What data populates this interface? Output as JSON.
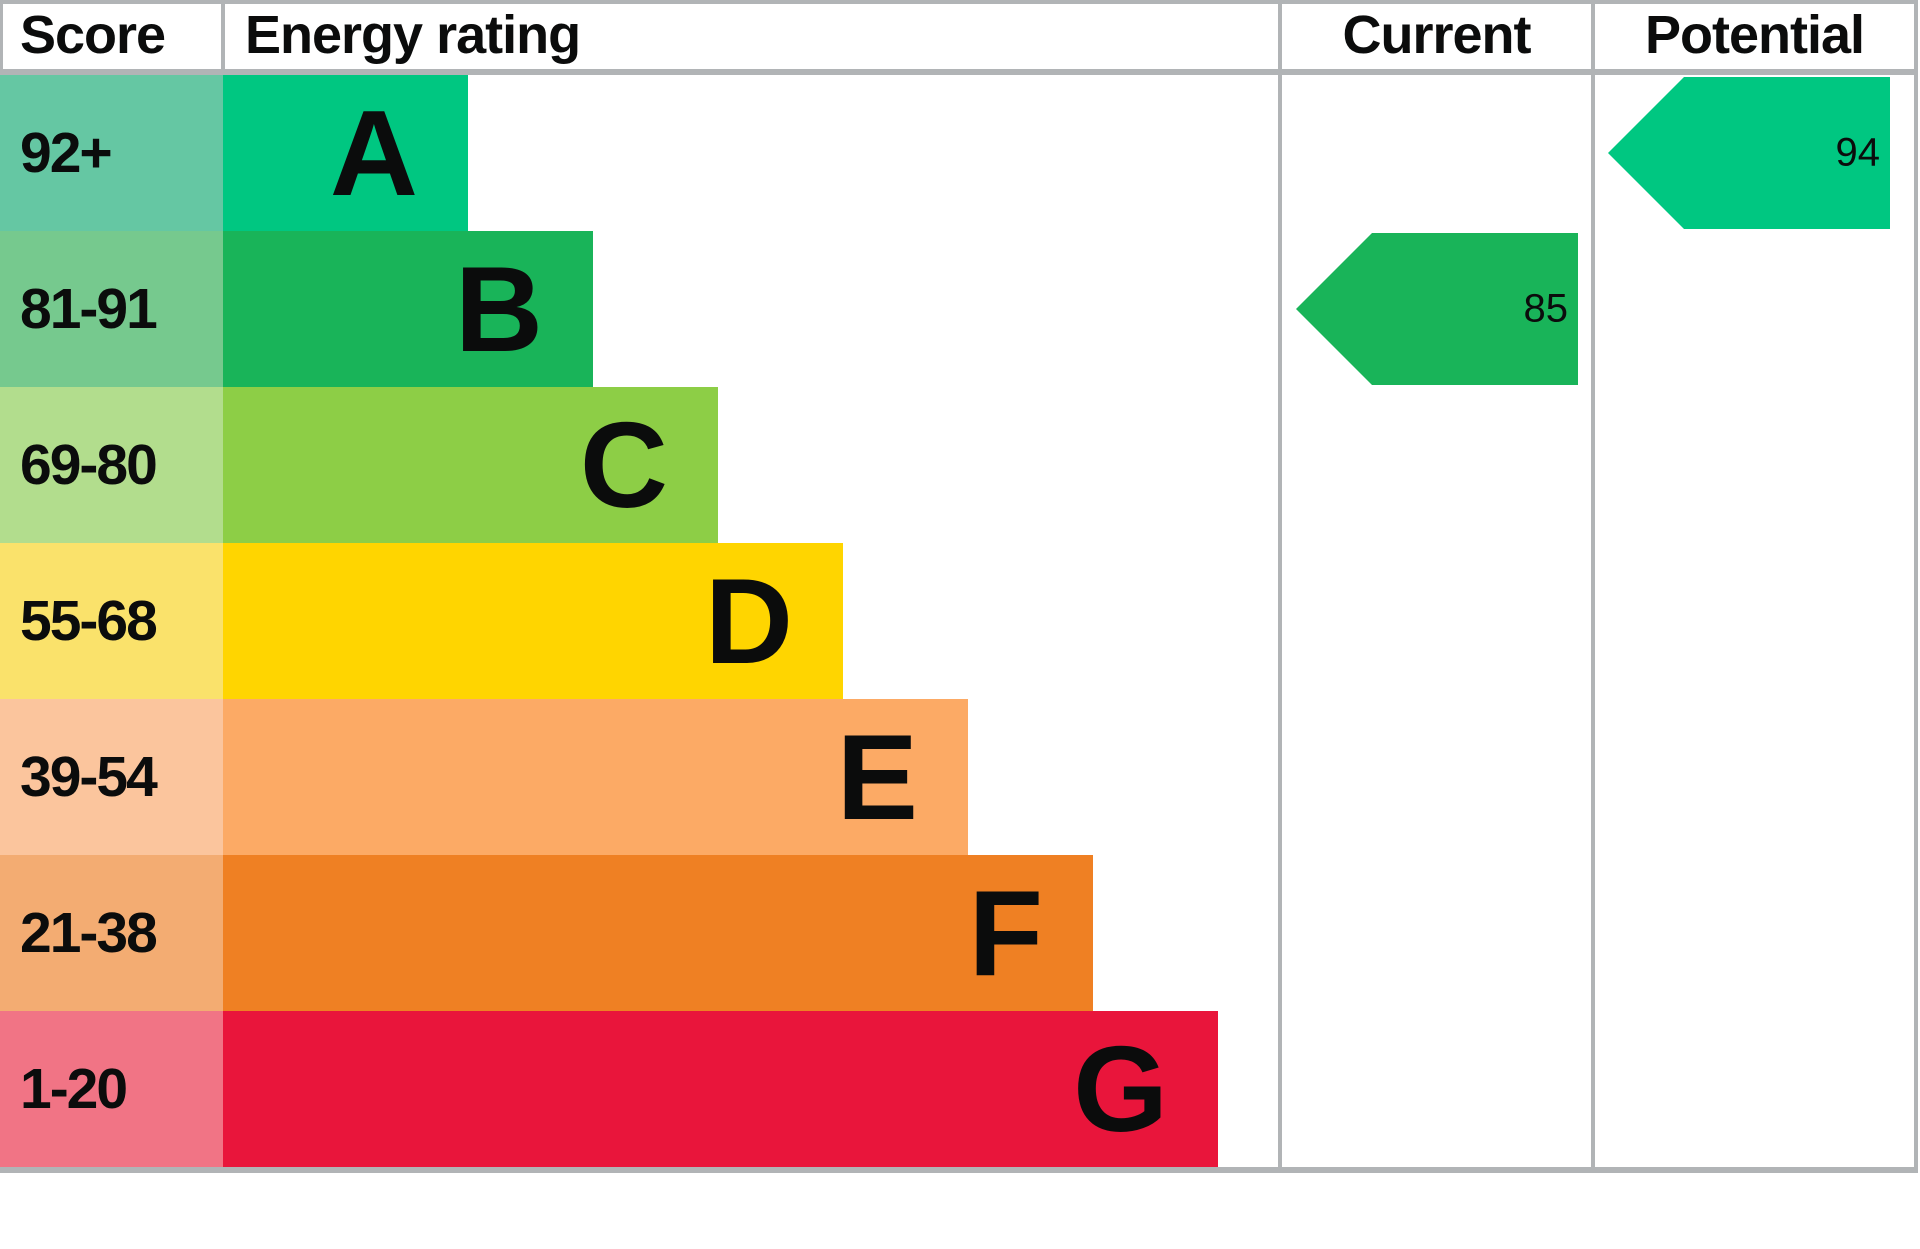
{
  "chart_data": {
    "type": "bar",
    "subtype": "epc-energy-rating",
    "title": "Energy rating",
    "columns": {
      "score": "Score",
      "rating": "Energy rating",
      "current": "Current",
      "potential": "Potential"
    },
    "bands": [
      {
        "score_label": "92+",
        "min": 92,
        "letter": "A",
        "bar_color": "#00c781",
        "score_tint": "#65c7a3"
      },
      {
        "score_label": "81-91",
        "min": 81,
        "letter": "B",
        "bar_color": "#19b459",
        "score_tint": "#76c98e"
      },
      {
        "score_label": "69-80",
        "min": 69,
        "letter": "C",
        "bar_color": "#8dce46",
        "score_tint": "#b2dd8d"
      },
      {
        "score_label": "55-68",
        "min": 55,
        "letter": "D",
        "bar_color": "#ffd500",
        "score_tint": "#fae26b"
      },
      {
        "score_label": "39-54",
        "min": 39,
        "letter": "E",
        "bar_color": "#fcaa65",
        "score_tint": "#fbc59d"
      },
      {
        "score_label": "21-38",
        "min": 21,
        "letter": "F",
        "bar_color": "#ef8023",
        "score_tint": "#f3ac72"
      },
      {
        "score_label": "1-20",
        "min": 1,
        "letter": "G",
        "bar_color": "#e9153b",
        "score_tint": "#f17485"
      }
    ],
    "markers": [
      {
        "name": "Current",
        "value": 85
      },
      {
        "name": "Potential",
        "value": 94
      }
    ]
  },
  "colors": {
    "border": "#b1b4b6",
    "text": "#0b0c0c",
    "background": "#ffffff"
  }
}
